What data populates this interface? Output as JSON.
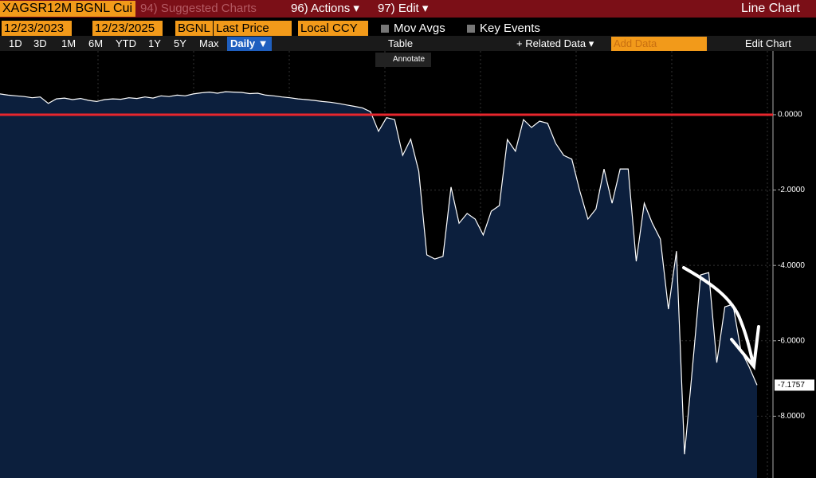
{
  "toolbar": {
    "security": "XAGSR12M BGNL Cui",
    "suggested": "94) Suggested Charts",
    "actions": "96) Actions ▾",
    "edit": "97) Edit ▾",
    "view": "Line Chart",
    "start_date": "12/23/2023",
    "end_date": "12/23/2025",
    "source": "BGNL",
    "field": "Last Price",
    "currency": "Local CCY",
    "mov_avgs": "Mov Avgs",
    "key_events": "Key Events",
    "periods": [
      "1D",
      "3D",
      "1M",
      "6M",
      "YTD",
      "1Y",
      "5Y",
      "Max"
    ],
    "frequency": "Daily ▼",
    "table": "Table",
    "related": "+ Related Data ▾",
    "add_data": "Add Data",
    "edit_chart": "Edit Chart",
    "annotate": "Annotate"
  },
  "chart_data": {
    "type": "line",
    "color": "#ffffff",
    "fill": "#0c1f3d",
    "hline": 0,
    "hline_color": "#e8262d",
    "values": [
      0.55,
      0.52,
      0.5,
      0.48,
      0.45,
      0.47,
      0.3,
      0.42,
      0.44,
      0.4,
      0.43,
      0.38,
      0.35,
      0.4,
      0.42,
      0.41,
      0.45,
      0.43,
      0.47,
      0.44,
      0.5,
      0.48,
      0.52,
      0.5,
      0.55,
      0.58,
      0.6,
      0.57,
      0.61,
      0.6,
      0.59,
      0.56,
      0.57,
      0.52,
      0.5,
      0.47,
      0.45,
      0.42,
      0.4,
      0.38,
      0.35,
      0.33,
      0.3,
      0.26,
      0.22,
      0.18,
      0.08,
      -0.44,
      -0.08,
      -0.13,
      -1.08,
      -0.65,
      -1.5,
      -3.72,
      -3.83,
      -3.76,
      -1.92,
      -2.88,
      -2.62,
      -2.77,
      -3.19,
      -2.56,
      -2.41,
      -0.66,
      -0.97,
      -0.13,
      -0.34,
      -0.17,
      -0.23,
      -0.76,
      -1.08,
      -1.18,
      -2.03,
      -2.77,
      -2.5,
      -1.44,
      -2.35,
      -1.44,
      -1.44,
      -3.89,
      -2.35,
      -2.88,
      -3.3,
      -5.16,
      -3.62,
      -9.01,
      -6.68,
      -4.25,
      -4.19,
      -6.58,
      -5.1,
      -5.03,
      -6.26,
      -6.68,
      -7.1757
    ],
    "last_label": "-7.1757",
    "ylim": [
      -9.64,
      1.69
    ],
    "yticks": [
      {
        "value": 0,
        "label": "0.0000"
      },
      {
        "value": -2,
        "label": "-2.0000"
      },
      {
        "value": -4,
        "label": "-4.0000"
      },
      {
        "value": -6,
        "label": "-6.0000"
      },
      {
        "value": -8,
        "label": "-8.0000"
      }
    ],
    "grid": true
  }
}
